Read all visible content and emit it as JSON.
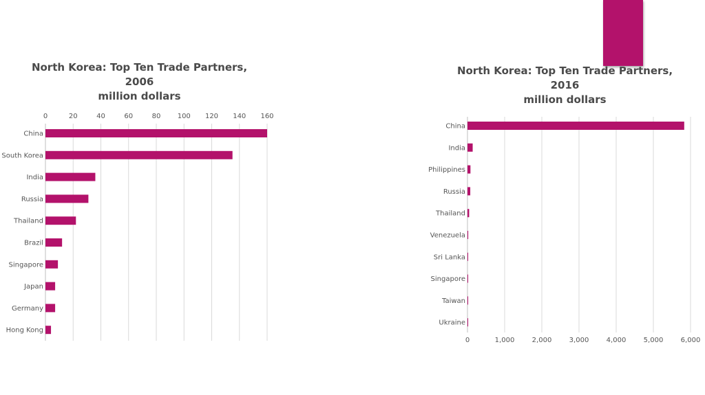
{
  "colors": {
    "bar": "#b3126b",
    "grid": "#d9d9d9",
    "text": "#555555",
    "title": "#4a4a4a"
  },
  "chart_data": [
    {
      "type": "bar",
      "orientation": "horizontal",
      "title_lines": [
        "North Korea: Top Ten Trade Partners,",
        "2006",
        "million dollars"
      ],
      "categories": [
        "China",
        "South Korea",
        "India",
        "Russia",
        "Thailand",
        "Brazil",
        "Singapore",
        "Japan",
        "Germany",
        "Hong Kong"
      ],
      "values": [
        160,
        135,
        36,
        31,
        22,
        12,
        9,
        7,
        7,
        4
      ],
      "xlim": [
        0,
        160
      ],
      "xticks": [
        "0",
        "20",
        "40",
        "60",
        "80",
        "100",
        "120",
        "140",
        "160"
      ],
      "axis_position": "top",
      "grid": true
    },
    {
      "type": "bar",
      "orientation": "horizontal",
      "title_lines": [
        "North Korea:  Top Ten Trade Partners,",
        "2016",
        "million dollars"
      ],
      "categories": [
        "China",
        "India",
        "Philippines",
        "Russia",
        "Thailand",
        "Venezuela",
        "Sri Lanka",
        "Singapore",
        "Taiwan",
        "Ukraine"
      ],
      "values": [
        5830,
        140,
        80,
        75,
        45,
        20,
        10,
        8,
        6,
        5
      ],
      "xlim": [
        0,
        6000
      ],
      "xticks": [
        "0",
        "1,000",
        "2,000",
        "3,000",
        "4,000",
        "5,000",
        "6,000"
      ],
      "axis_position": "bottom",
      "grid": true
    }
  ]
}
